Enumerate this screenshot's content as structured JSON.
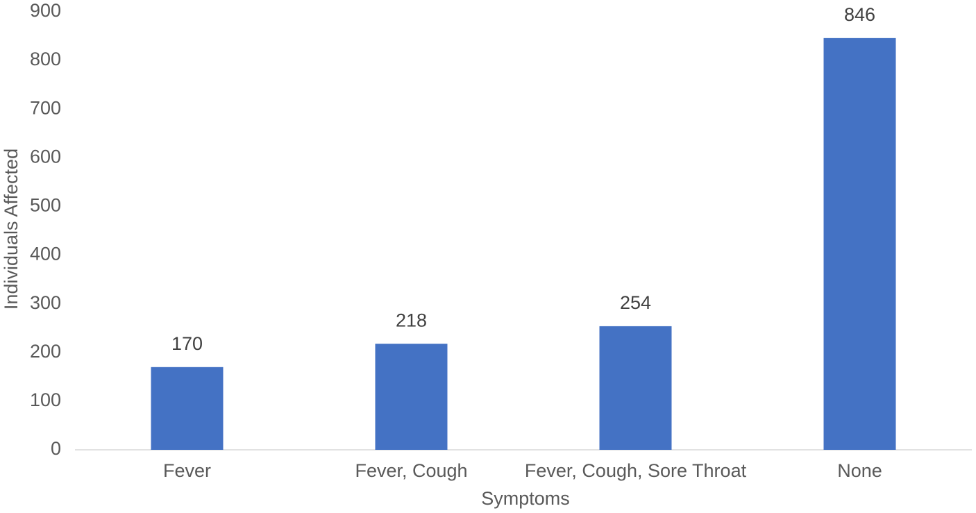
{
  "chart_data": {
    "type": "bar",
    "x_label": "Symptoms",
    "y_label": "Individuals Affected",
    "categories": [
      "Fever",
      "Fever, Cough",
      "Fever, Cough, Sore Throat",
      "None"
    ],
    "values": [
      170,
      218,
      254,
      846
    ],
    "color": "#4472c4",
    "ylim": [
      0,
      900
    ],
    "yticks": [
      0,
      100,
      200,
      300,
      400,
      500,
      600,
      700,
      800,
      900
    ],
    "grid": false
  }
}
